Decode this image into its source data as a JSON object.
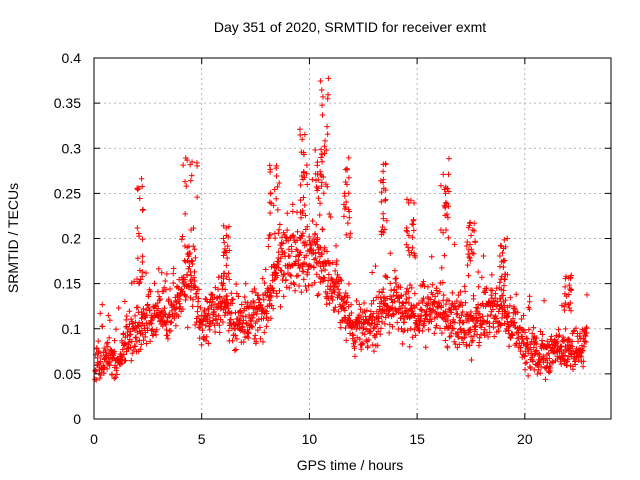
{
  "chart_data": {
    "type": "scatter",
    "title": "Day 351 of 2020, SRMTID for receiver exmt",
    "xlabel": "GPS time / hours",
    "ylabel": "SRMTID / TECUs",
    "xlim": [
      0,
      24
    ],
    "ylim": [
      0,
      0.4
    ],
    "grid": true,
    "marker": "+",
    "color": "#ff0000",
    "x_ticks": [
      0,
      5,
      10,
      15,
      20
    ],
    "x_tick_labels": [
      "0",
      "5",
      "10",
      "15",
      "20"
    ],
    "y_ticks": [
      0,
      0.05,
      0.1,
      0.15,
      0.2,
      0.25,
      0.3,
      0.35,
      0.4
    ],
    "y_tick_labels": [
      "0",
      "0.05",
      "0.1",
      "0.15",
      "0.2",
      "0.25",
      "0.3",
      "0.35",
      "0.4"
    ],
    "trend_knots": {
      "x": [
        0,
        0.5,
        1,
        1.5,
        2,
        2.5,
        3,
        3.5,
        4,
        4.5,
        5,
        5.5,
        6,
        6.5,
        7,
        7.5,
        8,
        8.5,
        9,
        9.5,
        10,
        10.5,
        11,
        11.5,
        12,
        12.5,
        13,
        13.5,
        14,
        14.5,
        15,
        15.5,
        16,
        16.5,
        17,
        17.5,
        18,
        18.5,
        19,
        19.5,
        20,
        20.5,
        21,
        21.5,
        22,
        22.5,
        22.9
      ],
      "y": [
        0.06,
        0.065,
        0.065,
        0.085,
        0.1,
        0.11,
        0.115,
        0.12,
        0.14,
        0.16,
        0.1,
        0.12,
        0.13,
        0.1,
        0.11,
        0.115,
        0.12,
        0.16,
        0.18,
        0.18,
        0.18,
        0.175,
        0.15,
        0.13,
        0.1,
        0.1,
        0.1,
        0.13,
        0.13,
        0.12,
        0.11,
        0.12,
        0.13,
        0.11,
        0.11,
        0.1,
        0.115,
        0.12,
        0.12,
        0.1,
        0.08,
        0.075,
        0.07,
        0.08,
        0.07,
        0.08,
        0.085
      ]
    },
    "bursts": [
      {
        "x": [
          2.0,
          2.3
        ],
        "y": [
          0.15,
          0.27
        ]
      },
      {
        "x": [
          4.1,
          4.9
        ],
        "y": [
          0.18,
          0.29
        ]
      },
      {
        "x": [
          6.0,
          6.3
        ],
        "y": [
          0.15,
          0.22
        ]
      },
      {
        "x": [
          8.1,
          8.6
        ],
        "y": [
          0.2,
          0.29
        ]
      },
      {
        "x": [
          9.5,
          9.9
        ],
        "y": [
          0.22,
          0.33
        ]
      },
      {
        "x": [
          10.1,
          10.6
        ],
        "y": [
          0.2,
          0.3
        ]
      },
      {
        "x": [
          10.5,
          10.9
        ],
        "y": [
          0.25,
          0.38
        ]
      },
      {
        "x": [
          11.6,
          11.9
        ],
        "y": [
          0.2,
          0.29
        ]
      },
      {
        "x": [
          13.3,
          13.6
        ],
        "y": [
          0.2,
          0.29
        ]
      },
      {
        "x": [
          14.5,
          14.9
        ],
        "y": [
          0.18,
          0.25
        ]
      },
      {
        "x": [
          16.1,
          16.5
        ],
        "y": [
          0.2,
          0.29
        ]
      },
      {
        "x": [
          17.3,
          17.7
        ],
        "y": [
          0.17,
          0.22
        ]
      },
      {
        "x": [
          18.8,
          19.2
        ],
        "y": [
          0.15,
          0.2
        ]
      },
      {
        "x": [
          21.8,
          22.2
        ],
        "y": [
          0.12,
          0.16
        ]
      }
    ]
  }
}
